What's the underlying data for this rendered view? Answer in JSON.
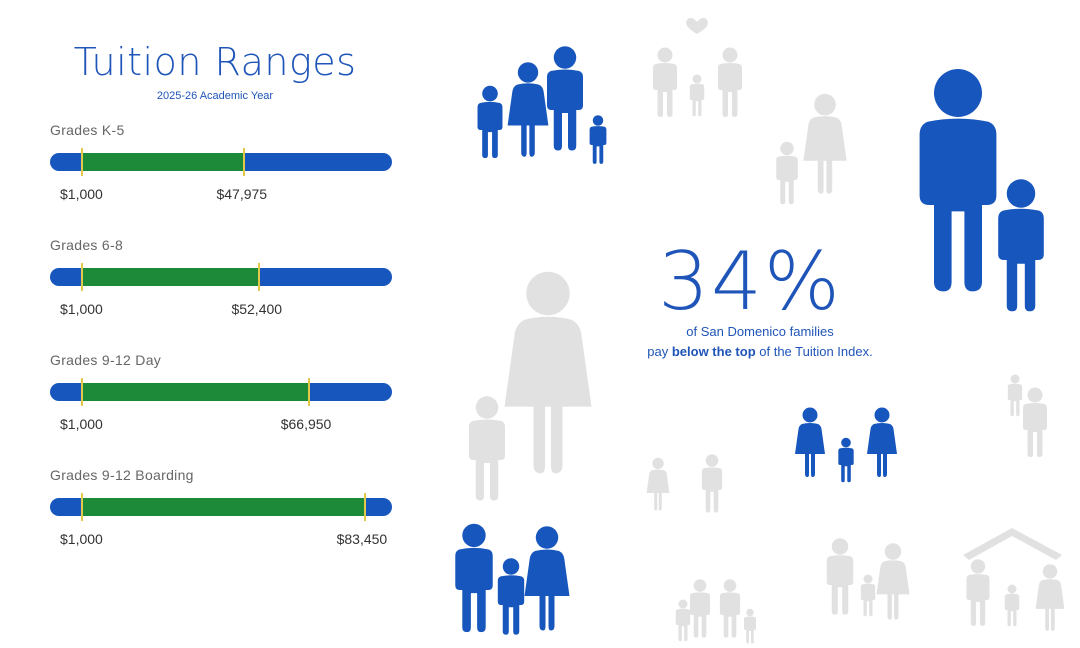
{
  "title": "Tuition Ranges",
  "subtitle": "2025-26 Academic Year",
  "ranges": [
    {
      "label": "Grades K-5",
      "min_label": "$1,000",
      "max_label": "$47,975",
      "min": 1000,
      "max": 47975
    },
    {
      "label": "Grades 6-8",
      "min_label": "$1,000",
      "max_label": "$52,400",
      "min": 1000,
      "max": 52400
    },
    {
      "label": "Grades 9-12 Day",
      "min_label": "$1,000",
      "max_label": "$66,950",
      "min": 1000,
      "max": 66950
    },
    {
      "label": "Grades 9-12 Boarding",
      "min_label": "$1,000",
      "max_label": "$83,450",
      "min": 1000,
      "max": 83450
    }
  ],
  "scale_max": 84450,
  "stat": {
    "percent": "34%",
    "line1": "of San Domenico families",
    "line2_pre": "pay ",
    "line2_bold": "below the top",
    "line2_post": " of the Tuition Index."
  },
  "colors": {
    "blue": "#1756bd",
    "green": "#1d8a3a",
    "tick": "#e3c94a",
    "gray": "#e1e1e1"
  }
}
